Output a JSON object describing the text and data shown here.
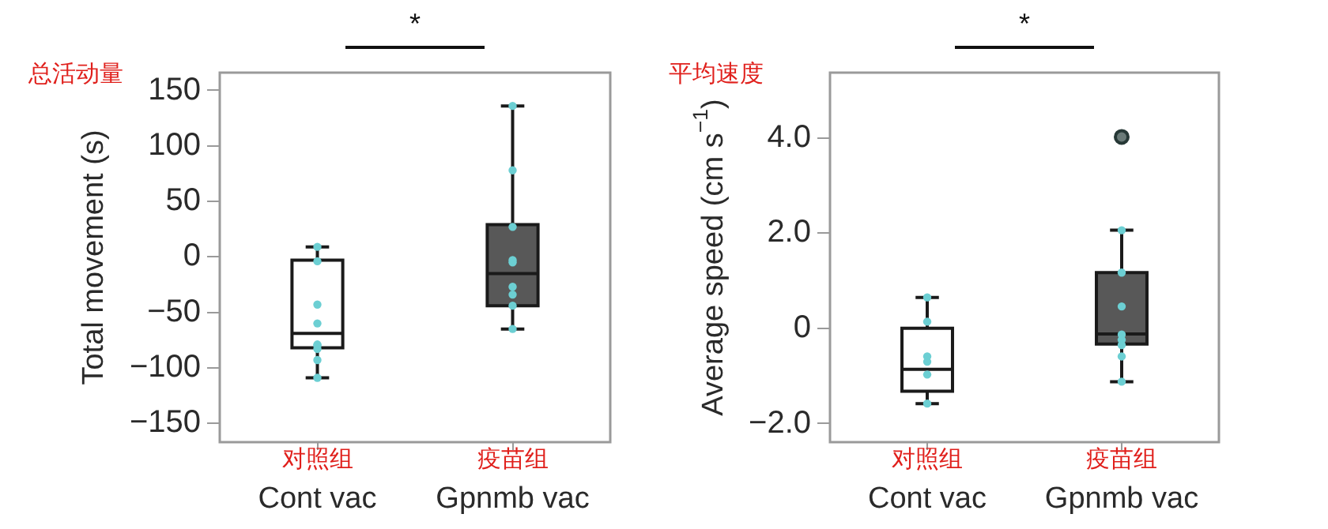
{
  "chart_data": [
    {
      "type": "box",
      "categories": [
        "Cont vac",
        "Gpnmb vac"
      ],
      "ylabel": "Total movement (s)",
      "ylim": [
        -167,
        166
      ],
      "yticks": [
        {
          "value": -150,
          "label": "−150"
        },
        {
          "value": -100,
          "label": "−100"
        },
        {
          "value": -50,
          "label": "−50"
        },
        0,
        50,
        100,
        150
      ],
      "marker": "circle",
      "series": [
        {
          "type": "box",
          "colors": [
            "#ffffff",
            "#585858"
          ],
          "boxes": [
            {
              "low": -109,
              "q1": -82,
              "median": -69,
              "q3": -3,
              "high": 9
            },
            {
              "low": -65,
              "q1": -44,
              "median": -15,
              "q3": 29,
              "high": 136
            }
          ]
        },
        {
          "type": "scatter",
          "color": "#6ccfd3",
          "x": [
            "Cont vac",
            "Cont vac",
            "Cont vac",
            "Cont vac",
            "Cont vac",
            "Cont vac",
            "Cont vac",
            "Cont vac",
            "Cont vac",
            "Gpnmb vac",
            "Gpnmb vac",
            "Gpnmb vac",
            "Gpnmb vac",
            "Gpnmb vac",
            "Gpnmb vac",
            "Gpnmb vac",
            "Gpnmb vac",
            "Gpnmb vac"
          ],
          "values": [
            9,
            -4,
            -43,
            -60,
            -79,
            -80,
            -83,
            -93,
            -109,
            136,
            78,
            27,
            -3,
            -5,
            -27,
            -34,
            -44,
            -65
          ]
        }
      ],
      "annotations": [
        "*",
        "总活动量",
        "对照组",
        "疫苗组"
      ]
    },
    {
      "type": "box",
      "categories": [
        "Cont vac",
        "Gpnmb vac"
      ],
      "ylabel": "Average speed (cm s$^{−1}$)",
      "ylim": [
        -2.39,
        5.37
      ],
      "yticks": [
        {
          "value": -2,
          "label": "−2.0"
        },
        0,
        {
          "value": 2,
          "label": "2.0"
        },
        {
          "value": 4,
          "label": "4.0"
        }
      ],
      "marker": "circle",
      "series": [
        {
          "type": "box",
          "colors": [
            "#ffffff",
            "#585858"
          ],
          "boxes": [
            {
              "low": -1.58,
              "q1": -1.32,
              "median": -0.86,
              "q3": 0,
              "high": 0.65
            },
            {
              "low": -1.12,
              "q1": -0.33,
              "median": -0.12,
              "q3": 1.17,
              "high": 2.06,
              "outliers": [
                4.02
              ]
            }
          ]
        },
        {
          "type": "scatter",
          "color": "#6ccfd3",
          "x": [
            "Cont vac",
            "Cont vac",
            "Cont vac",
            "Cont vac",
            "Cont vac",
            "Cont vac",
            "Gpnmb vac",
            "Gpnmb vac",
            "Gpnmb vac",
            "Gpnmb vac",
            "Gpnmb vac",
            "Gpnmb vac",
            "Gpnmb vac",
            "Gpnmb vac"
          ],
          "values": [
            0.65,
            0.14,
            -0.59,
            -0.7,
            -0.97,
            -1.58,
            2.06,
            1.17,
            0.46,
            -0.13,
            -0.24,
            -0.35,
            -0.59,
            -1.12
          ]
        }
      ],
      "annotations": [
        "*",
        "平均速度",
        "对照组",
        "疫苗组"
      ]
    }
  ]
}
